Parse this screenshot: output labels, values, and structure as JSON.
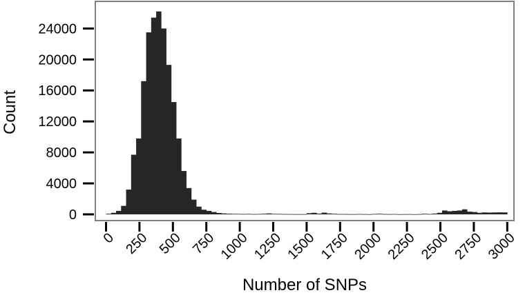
{
  "chart_data": {
    "type": "bar",
    "title": "",
    "xlabel": "Number of SNPs",
    "ylabel": "Count",
    "xlim": [
      -80,
      3050
    ],
    "ylim": [
      -800,
      27500
    ],
    "x_ticks": [
      0,
      250,
      500,
      750,
      1000,
      1250,
      1500,
      1750,
      2000,
      2250,
      2500,
      2750,
      3000
    ],
    "x_tick_labels": [
      "0",
      "250",
      "500",
      "750",
      "1000",
      "1250",
      "1500",
      "1750",
      "2000",
      "2250",
      "2500",
      "2750",
      "3000"
    ],
    "y_ticks": [
      0,
      4000,
      8000,
      12000,
      16000,
      20000,
      24000
    ],
    "y_tick_labels": [
      "0",
      "4000",
      "8000",
      "12000",
      "16000",
      "20000",
      "24000"
    ],
    "bin_width": 37.5,
    "bin_starts": [
      0,
      37.5,
      75,
      112.5,
      150,
      187.5,
      225,
      262.5,
      300,
      337.5,
      375,
      412.5,
      450,
      487.5,
      525,
      562.5,
      600,
      637.5,
      675,
      712.5,
      750,
      787.5,
      825,
      862.5,
      900,
      937.5,
      975,
      1012.5,
      1050,
      1087.5,
      1125,
      1162.5,
      1200,
      1237.5,
      1275,
      1312.5,
      1350,
      1387.5,
      1425,
      1462.5,
      1500,
      1537.5,
      1575,
      1612.5,
      1650,
      1687.5,
      1725,
      1762.5,
      1800,
      1837.5,
      1875,
      1912.5,
      1950,
      1987.5,
      2025,
      2062.5,
      2100,
      2137.5,
      2175,
      2212.5,
      2250,
      2287.5,
      2325,
      2362.5,
      2400,
      2437.5,
      2475,
      2512.5,
      2550,
      2587.5,
      2625,
      2662.5,
      2700,
      2737.5,
      2775,
      2812.5,
      2850,
      2887.5,
      2925,
      2962.5
    ],
    "values": [
      80,
      200,
      450,
      1100,
      3200,
      7700,
      9800,
      17200,
      23500,
      25400,
      26200,
      24000,
      19300,
      14500,
      9800,
      5600,
      3400,
      1900,
      1000,
      600,
      450,
      300,
      180,
      120,
      90,
      70,
      60,
      50,
      60,
      40,
      50,
      80,
      120,
      70,
      60,
      40,
      40,
      30,
      30,
      30,
      150,
      200,
      100,
      220,
      120,
      80,
      40,
      40,
      30,
      30,
      40,
      30,
      20,
      50,
      80,
      40,
      30,
      40,
      20,
      30,
      30,
      20,
      30,
      80,
      50,
      100,
      200,
      500,
      400,
      450,
      500,
      650,
      350,
      300,
      200,
      250,
      230,
      250,
      260,
      250
    ],
    "bar_color": "#262626",
    "frame_color": "#7f7f7f",
    "grid": false,
    "legend": "none"
  }
}
